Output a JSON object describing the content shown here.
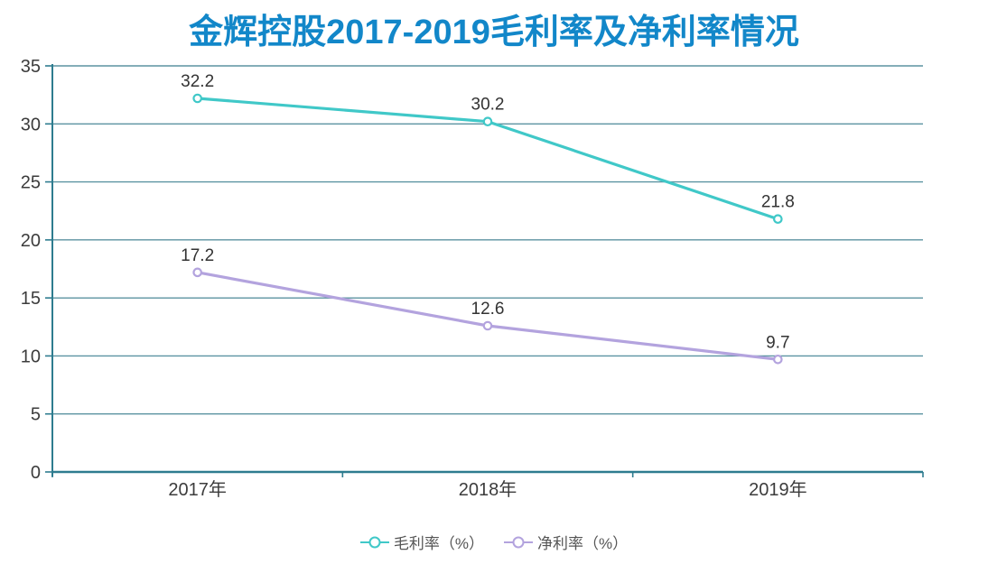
{
  "chart_data": {
    "type": "line",
    "title": "金辉控股2017-2019毛利率及净利率情况",
    "title_color": "#1287c9",
    "categories": [
      "2017年",
      "2018年",
      "2019年"
    ],
    "series": [
      {
        "name": "毛利率（%）",
        "values": [
          32.2,
          30.2,
          21.8
        ],
        "color": "#40c8c8"
      },
      {
        "name": "净利率（%）",
        "values": [
          17.2,
          12.6,
          9.7
        ],
        "color": "#b3a3de"
      }
    ],
    "ylim": [
      0,
      35
    ],
    "yticks": [
      0,
      5,
      10,
      15,
      20,
      25,
      30,
      35
    ],
    "xlabel": "",
    "ylabel": "",
    "grid": true,
    "legend_position": "bottom",
    "axis_color": "#2e7c8f",
    "grid_color": "#5b93a1",
    "tick_label_color": "#3c3c3c",
    "data_label_color": "#333333",
    "legend_text_color": "#555555",
    "marker_fill": "#ffffff"
  }
}
